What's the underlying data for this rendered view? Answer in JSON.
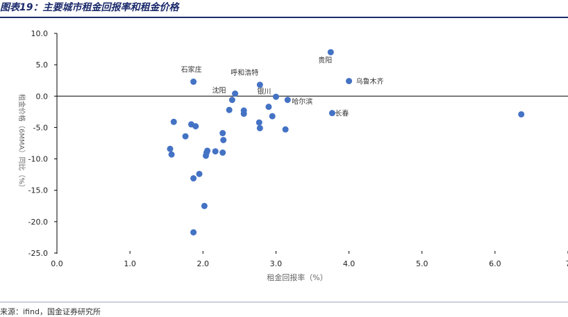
{
  "title": "图表19：主要城市租金回报率和租金价格",
  "source": "来源：ifind，国金证券研究所",
  "chart_data": {
    "type": "scatter",
    "xlabel": "租金回报率（%）",
    "ylabel": "租金价格（6MMA）同比（%）",
    "xlim": [
      0,
      7
    ],
    "ylim": [
      -25,
      10
    ],
    "x_ticks": [
      0,
      1,
      2,
      3,
      4,
      5,
      6,
      7
    ],
    "y_ticks": [
      10,
      5,
      0,
      -5,
      -10,
      -15,
      -20,
      -25
    ],
    "x_tick_labels": [
      "0.0",
      "1.0",
      "2.0",
      "3.0",
      "4.0",
      "5.0",
      "6.0",
      "7"
    ],
    "y_tick_labels": [
      "10.0",
      "5.0",
      "0.0",
      "-5.0",
      "-10.0",
      "-15.0",
      "-20.0",
      "-25.0"
    ],
    "point_color": "#4472c4",
    "points": [
      {
        "x": 3.75,
        "y": 7.0,
        "label": "贵阳"
      },
      {
        "x": 4.0,
        "y": 2.4,
        "label": "乌鲁木齐"
      },
      {
        "x": 1.87,
        "y": 2.3,
        "label": "石家庄"
      },
      {
        "x": 2.78,
        "y": 1.8,
        "label": "呼和浩特"
      },
      {
        "x": 2.44,
        "y": 0.4,
        "label": "沈阳"
      },
      {
        "x": 3.0,
        "y": -0.1,
        "label": "银川"
      },
      {
        "x": 3.16,
        "y": -0.6,
        "label": "哈尔滨"
      },
      {
        "x": 3.77,
        "y": -2.7,
        "label": "长春"
      },
      {
        "x": 6.36,
        "y": -2.9,
        "label": ""
      },
      {
        "x": 2.4,
        "y": -0.6,
        "label": ""
      },
      {
        "x": 2.36,
        "y": -2.2,
        "label": ""
      },
      {
        "x": 2.56,
        "y": -2.3,
        "label": ""
      },
      {
        "x": 2.56,
        "y": -2.8,
        "label": ""
      },
      {
        "x": 2.9,
        "y": -1.7,
        "label": ""
      },
      {
        "x": 2.95,
        "y": -3.2,
        "label": ""
      },
      {
        "x": 2.77,
        "y": -4.2,
        "label": ""
      },
      {
        "x": 2.78,
        "y": -5.1,
        "label": ""
      },
      {
        "x": 3.13,
        "y": -5.3,
        "label": ""
      },
      {
        "x": 1.6,
        "y": -4.1,
        "label": ""
      },
      {
        "x": 1.84,
        "y": -4.5,
        "label": ""
      },
      {
        "x": 1.9,
        "y": -4.8,
        "label": ""
      },
      {
        "x": 1.76,
        "y": -6.4,
        "label": ""
      },
      {
        "x": 2.27,
        "y": -5.9,
        "label": ""
      },
      {
        "x": 2.28,
        "y": -7.0,
        "label": ""
      },
      {
        "x": 1.55,
        "y": -8.4,
        "label": ""
      },
      {
        "x": 1.57,
        "y": -9.3,
        "label": ""
      },
      {
        "x": 2.06,
        "y": -8.7,
        "label": ""
      },
      {
        "x": 2.05,
        "y": -9.0,
        "label": ""
      },
      {
        "x": 2.04,
        "y": -9.5,
        "label": ""
      },
      {
        "x": 2.17,
        "y": -8.8,
        "label": ""
      },
      {
        "x": 2.27,
        "y": -9.0,
        "label": ""
      },
      {
        "x": 1.95,
        "y": -12.4,
        "label": ""
      },
      {
        "x": 1.87,
        "y": -13.1,
        "label": ""
      },
      {
        "x": 2.02,
        "y": -17.5,
        "label": ""
      },
      {
        "x": 1.87,
        "y": -21.7,
        "label": ""
      }
    ]
  }
}
